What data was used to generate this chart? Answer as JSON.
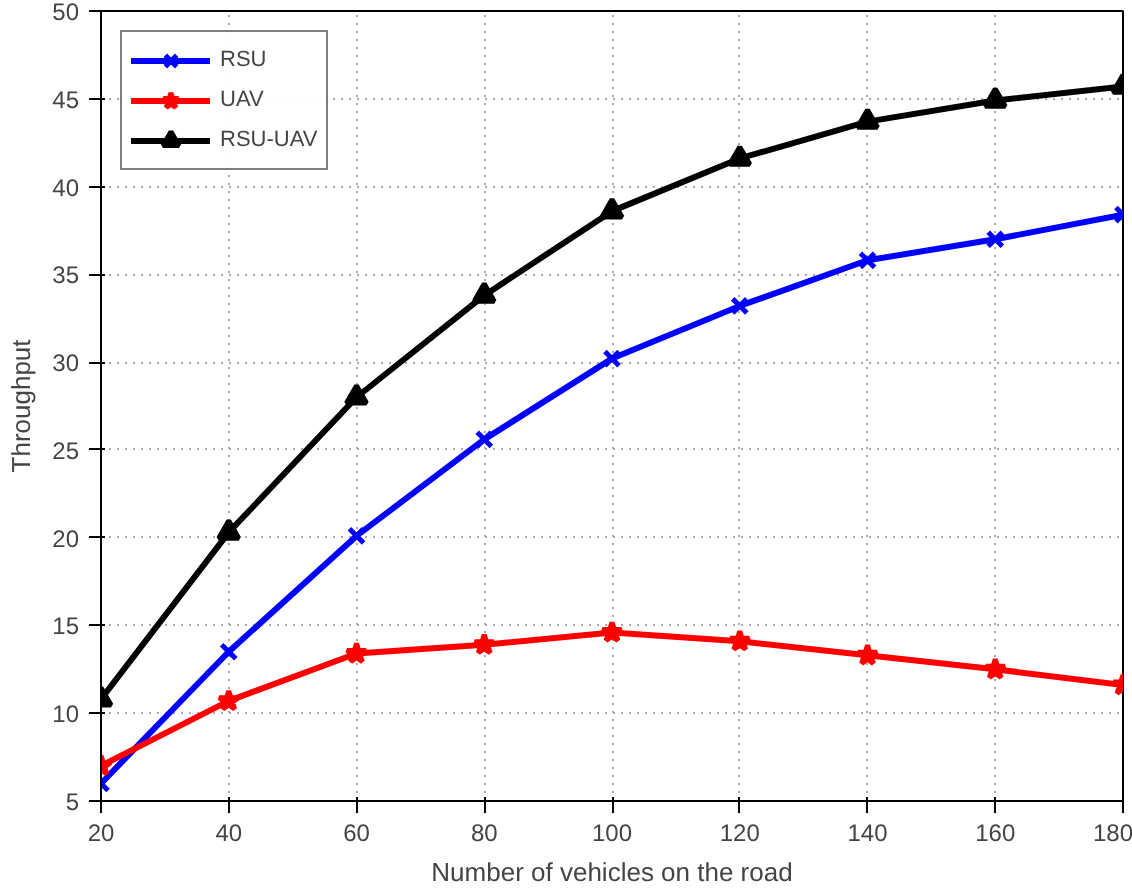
{
  "chart_data": {
    "type": "line",
    "xlabel": "Number of vehicles on the road",
    "ylabel": "Throughput",
    "x": [
      20,
      40,
      60,
      80,
      100,
      120,
      140,
      160,
      180
    ],
    "series": [
      {
        "name": "RSU",
        "color": "#0000ff",
        "marker": "cross",
        "values": [
          6,
          13.5,
          20.1,
          25.6,
          30.2,
          33.2,
          35.8,
          37.0,
          38.4
        ]
      },
      {
        "name": "UAV",
        "color": "#ff0000",
        "marker": "star",
        "values": [
          7,
          10.7,
          13.4,
          13.9,
          14.6,
          14.1,
          13.3,
          12.5,
          11.6
        ]
      },
      {
        "name": "RSU-UAV",
        "color": "#000000",
        "marker": "triangle",
        "values": [
          10.8,
          20.3,
          28.0,
          33.8,
          38.6,
          41.6,
          43.7,
          44.9,
          45.7
        ]
      }
    ],
    "xlim": [
      20,
      180
    ],
    "xticks": [
      20,
      40,
      60,
      80,
      100,
      120,
      140,
      160,
      180
    ],
    "ylim": [
      5,
      50
    ],
    "yticks": [
      5,
      10,
      15,
      20,
      25,
      30,
      35,
      40,
      45,
      50
    ],
    "grid": true,
    "legend": "top left",
    "line_style": "solid"
  }
}
